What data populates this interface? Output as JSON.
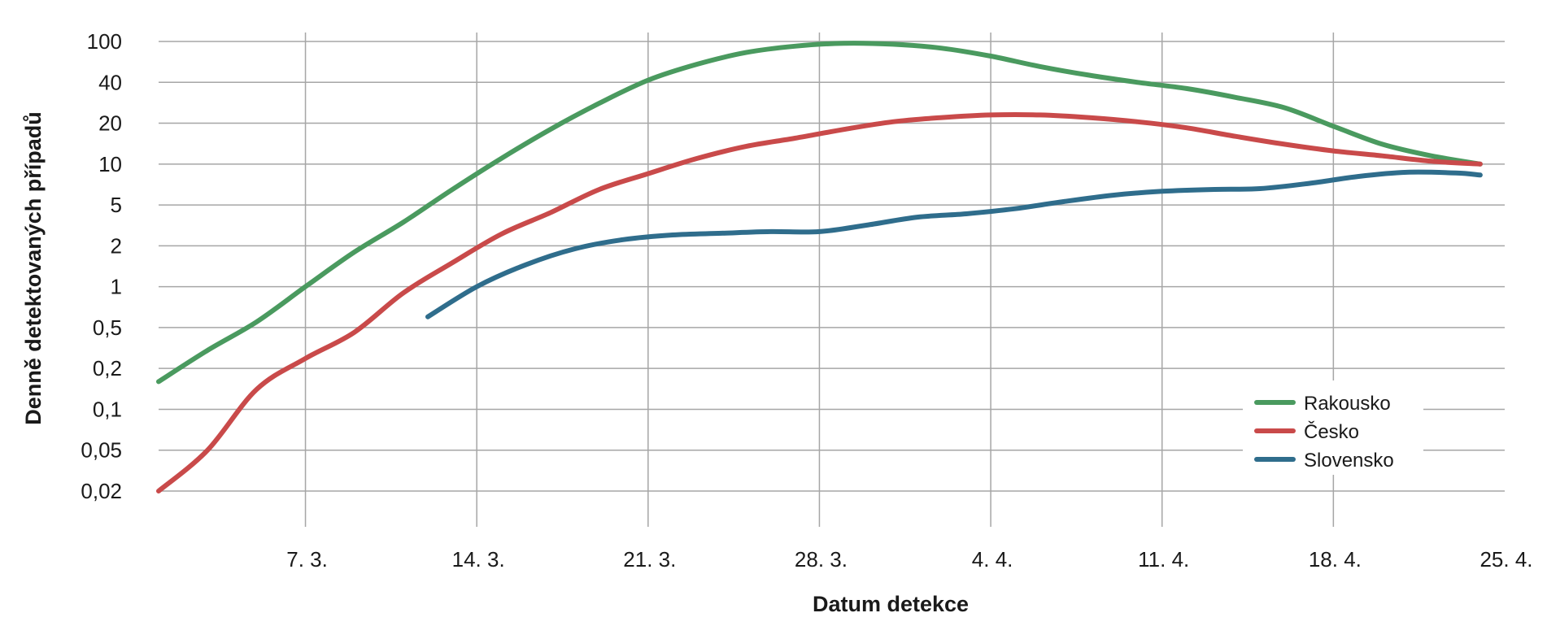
{
  "chart_data": {
    "type": "line",
    "xlabel": "Datum detekce",
    "ylabel": "Denně detektovaných případů",
    "y_scale": "log",
    "y_ticks": [
      {
        "value": 100,
        "label": "100"
      },
      {
        "value": 40,
        "label": "40"
      },
      {
        "value": 20,
        "label": "20"
      },
      {
        "value": 10,
        "label": "10"
      },
      {
        "value": 5,
        "label": "5"
      },
      {
        "value": 2,
        "label": "2"
      },
      {
        "value": 1,
        "label": "1"
      },
      {
        "value": 0.5,
        "label": "0,5"
      },
      {
        "value": 0.2,
        "label": "0,2"
      },
      {
        "value": 0.1,
        "label": "0,1"
      },
      {
        "value": 0.05,
        "label": "0,05"
      },
      {
        "value": 0.02,
        "label": "0,02"
      }
    ],
    "x_ticks": [
      {
        "value": "2020-03-07",
        "label": "7. 3."
      },
      {
        "value": "2020-03-14",
        "label": "14. 3."
      },
      {
        "value": "2020-03-21",
        "label": "21. 3."
      },
      {
        "value": "2020-03-28",
        "label": "28. 3."
      },
      {
        "value": "2020-04-04",
        "label": "4. 4."
      },
      {
        "value": "2020-04-11",
        "label": "11. 4."
      },
      {
        "value": "2020-04-18",
        "label": "18. 4."
      },
      {
        "value": "2020-04-25",
        "label": "25. 4."
      }
    ],
    "x_range": [
      "2020-03-01",
      "2020-04-25"
    ],
    "grid": true,
    "legend_position": "bottom-right",
    "series": [
      {
        "name": "Rakousko",
        "color": "#4a9a5f",
        "points": [
          [
            "2020-03-01",
            0.16
          ],
          [
            "2020-03-03",
            0.3
          ],
          [
            "2020-03-05",
            0.55
          ],
          [
            "2020-03-07",
            1.0
          ],
          [
            "2020-03-09",
            1.8
          ],
          [
            "2020-03-11",
            3.4
          ],
          [
            "2020-03-13",
            6.5
          ],
          [
            "2020-03-15",
            11
          ],
          [
            "2020-03-17",
            18
          ],
          [
            "2020-03-19",
            28
          ],
          [
            "2020-03-21",
            42
          ],
          [
            "2020-03-23",
            60
          ],
          [
            "2020-03-25",
            78
          ],
          [
            "2020-03-27",
            90
          ],
          [
            "2020-03-29",
            96
          ],
          [
            "2020-03-31",
            94
          ],
          [
            "2020-04-02",
            86
          ],
          [
            "2020-04-04",
            72
          ],
          [
            "2020-04-06",
            57
          ],
          [
            "2020-04-08",
            47
          ],
          [
            "2020-04-10",
            40
          ],
          [
            "2020-04-12",
            36
          ],
          [
            "2020-04-14",
            31
          ],
          [
            "2020-04-16",
            26
          ],
          [
            "2020-04-18",
            19
          ],
          [
            "2020-04-20",
            14
          ],
          [
            "2020-04-22",
            11.5
          ],
          [
            "2020-04-24",
            10
          ]
        ]
      },
      {
        "name": "Česko",
        "color": "#c94a4a",
        "points": [
          [
            "2020-03-01",
            0.02
          ],
          [
            "2020-03-03",
            0.05
          ],
          [
            "2020-03-05",
            0.14
          ],
          [
            "2020-03-07",
            0.25
          ],
          [
            "2020-03-09",
            0.45
          ],
          [
            "2020-03-11",
            0.9
          ],
          [
            "2020-03-13",
            1.5
          ],
          [
            "2020-03-15",
            2.6
          ],
          [
            "2020-03-17",
            4.2
          ],
          [
            "2020-03-19",
            6.5
          ],
          [
            "2020-03-21",
            8.5
          ],
          [
            "2020-03-23",
            11
          ],
          [
            "2020-03-25",
            13.5
          ],
          [
            "2020-03-27",
            15.5
          ],
          [
            "2020-03-29",
            18
          ],
          [
            "2020-03-31",
            20.5
          ],
          [
            "2020-04-02",
            22
          ],
          [
            "2020-04-04",
            23
          ],
          [
            "2020-04-06",
            23
          ],
          [
            "2020-04-08",
            22
          ],
          [
            "2020-04-10",
            20.5
          ],
          [
            "2020-04-12",
            18.5
          ],
          [
            "2020-04-14",
            16
          ],
          [
            "2020-04-16",
            14
          ],
          [
            "2020-04-18",
            12.5
          ],
          [
            "2020-04-20",
            11.5
          ],
          [
            "2020-04-22",
            10.5
          ],
          [
            "2020-04-24",
            10
          ]
        ]
      },
      {
        "name": "Slovensko",
        "color": "#2f6d8c",
        "points": [
          [
            "2020-03-12",
            0.6
          ],
          [
            "2020-03-14",
            1.0
          ],
          [
            "2020-03-16",
            1.45
          ],
          [
            "2020-03-18",
            1.9
          ],
          [
            "2020-03-20",
            2.3
          ],
          [
            "2020-03-22",
            2.55
          ],
          [
            "2020-03-24",
            2.65
          ],
          [
            "2020-03-26",
            2.75
          ],
          [
            "2020-03-28",
            2.75
          ],
          [
            "2020-03-30",
            3.2
          ],
          [
            "2020-04-01",
            3.8
          ],
          [
            "2020-04-03",
            4.1
          ],
          [
            "2020-04-05",
            4.6
          ],
          [
            "2020-04-07",
            5.3
          ],
          [
            "2020-04-09",
            5.9
          ],
          [
            "2020-04-11",
            6.3
          ],
          [
            "2020-04-13",
            6.5
          ],
          [
            "2020-04-15",
            6.6
          ],
          [
            "2020-04-17",
            7.2
          ],
          [
            "2020-04-19",
            8.1
          ],
          [
            "2020-04-21",
            8.7
          ],
          [
            "2020-04-23",
            8.6
          ],
          [
            "2020-04-24",
            8.3
          ]
        ]
      }
    ]
  }
}
